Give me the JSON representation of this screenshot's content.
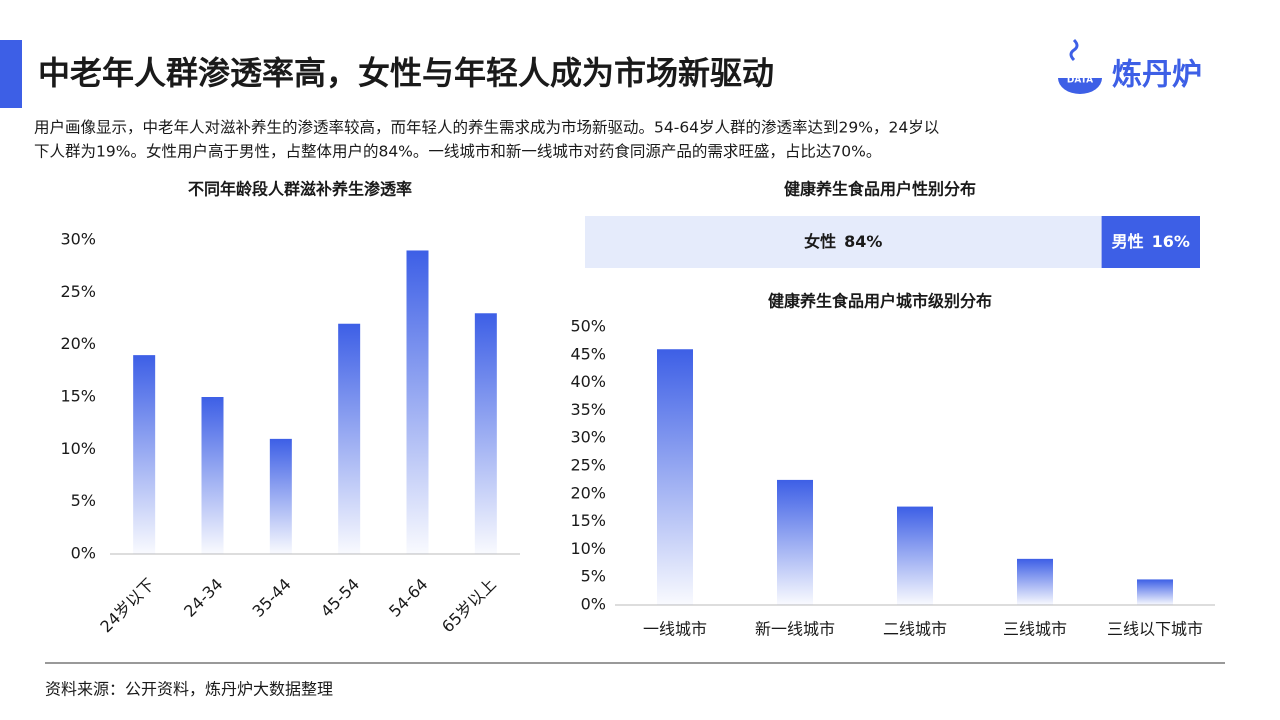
{
  "header": {
    "title": "中老年人群渗透率高，女性与年轻人成为市场新驱动",
    "logo": "炼丹炉",
    "logo_badge": "DATA"
  },
  "description": [
    "用户画像显示，中老年人对滋补养生的渗透率较高，而年轻人的养生需求成为市场新驱动。54-64岁人群的渗透率达到29%，24岁以",
    "下人群为19%。女性用户高于男性，占整体用户的84%。一线城市和新一线城市对药食同源产品的需求旺盛，占比达70%。"
  ],
  "source": "资料来源：公开资料，炼丹炉大数据整理",
  "chart_data": [
    {
      "type": "bar",
      "title": "不同年龄段人群滋补养生渗透率",
      "categories": [
        "24岁以下",
        "24-34",
        "35-44",
        "45-54",
        "54-64",
        "65岁以上"
      ],
      "values": [
        19,
        15,
        11,
        22,
        29,
        23
      ],
      "color": "#3d5fe6",
      "ylim": [
        0,
        30
      ],
      "yticks": [
        {
          "value": 0,
          "label": "0%"
        },
        {
          "value": 5,
          "label": "5%"
        },
        {
          "value": 10,
          "label": "10%"
        },
        {
          "value": 15,
          "label": "15%"
        },
        {
          "value": 20,
          "label": "20%"
        },
        {
          "value": 25,
          "label": "25%"
        },
        {
          "value": 30,
          "label": "30%"
        }
      ],
      "rotate_labels": true
    },
    {
      "type": "stacked_hbar",
      "title": "健康养生食品用户性别分布",
      "series": [
        {
          "name": "女性",
          "color": "#e5ebfb",
          "values": [
            84
          ],
          "value_labels": [
            "84%"
          ]
        },
        {
          "name": "男性",
          "color": "#3d5fe6",
          "values": [
            16
          ],
          "value_labels": [
            "16%"
          ]
        }
      ]
    },
    {
      "type": "bar",
      "title": "健康养生食品用户城市级别分布",
      "categories": [
        "一线城市",
        "新一线城市",
        "二线城市",
        "三线城市",
        "三线以下城市"
      ],
      "values": [
        46,
        22.5,
        17.7,
        8.3,
        4.6
      ],
      "color": "#3d5fe6",
      "ylim": [
        0,
        50
      ],
      "yticks": [
        {
          "value": 0,
          "label": "0%"
        },
        {
          "value": 5,
          "label": "5%"
        },
        {
          "value": 10,
          "label": "10%"
        },
        {
          "value": 15,
          "label": "15%"
        },
        {
          "value": 20,
          "label": "20%"
        },
        {
          "value": 25,
          "label": "25%"
        },
        {
          "value": 30,
          "label": "30%"
        },
        {
          "value": 35,
          "label": "35%"
        },
        {
          "value": 40,
          "label": "40%"
        },
        {
          "value": 45,
          "label": "45%"
        },
        {
          "value": 50,
          "label": "50%"
        }
      ],
      "rotate_labels": false
    }
  ]
}
